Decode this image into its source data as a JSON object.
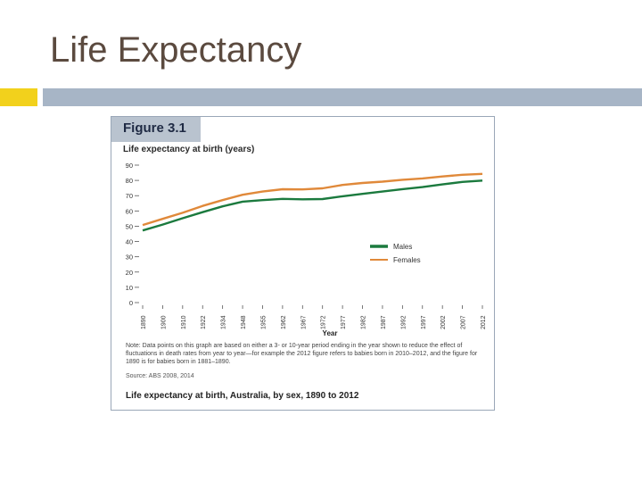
{
  "slide": {
    "title": "Life Expectancy"
  },
  "figure": {
    "label": "Figure 3.1",
    "subtitle": "Life expectancy at birth (years)",
    "note": "Note: Data points on this graph are based on either a 3- or 10-year period ending in the year shown to reduce the effect of fluctuations in death rates from year to year—for example the 2012 figure refers to babies born in 2010–2012, and the figure for 1890 is for babies born in 1881–1890.",
    "source": "Source: ABS 2008, 2014",
    "caption": "Life expectancy at birth, Australia, by sex, 1890 to 2012"
  },
  "chart_data": {
    "type": "line",
    "title": "",
    "xlabel": "Year",
    "ylabel": "Life expectancy at birth (years)",
    "ylim": [
      0,
      90
    ],
    "yticks": [
      0,
      10,
      20,
      30,
      40,
      50,
      60,
      70,
      80,
      90
    ],
    "categories": [
      "1890",
      "1900",
      "1910",
      "1922",
      "1934",
      "1948",
      "1955",
      "1962",
      "1967",
      "1972",
      "1977",
      "1982",
      "1987",
      "1992",
      "1997",
      "2002",
      "2007",
      "2012"
    ],
    "series": [
      {
        "name": "Males",
        "color": "#1b7a3e",
        "values": [
          47.2,
          51.1,
          55.2,
          59.2,
          63.0,
          66.1,
          67.1,
          67.9,
          67.6,
          67.8,
          69.6,
          71.2,
          72.7,
          74.3,
          75.6,
          77.4,
          79.0,
          79.9
        ]
      },
      {
        "name": "Females",
        "color": "#e0893a",
        "values": [
          50.8,
          54.8,
          58.8,
          63.3,
          67.1,
          70.6,
          72.7,
          74.2,
          74.1,
          74.8,
          77.0,
          78.3,
          79.2,
          80.4,
          81.3,
          82.6,
          83.7,
          84.3
        ]
      }
    ],
    "legend": "right",
    "grid": false
  }
}
